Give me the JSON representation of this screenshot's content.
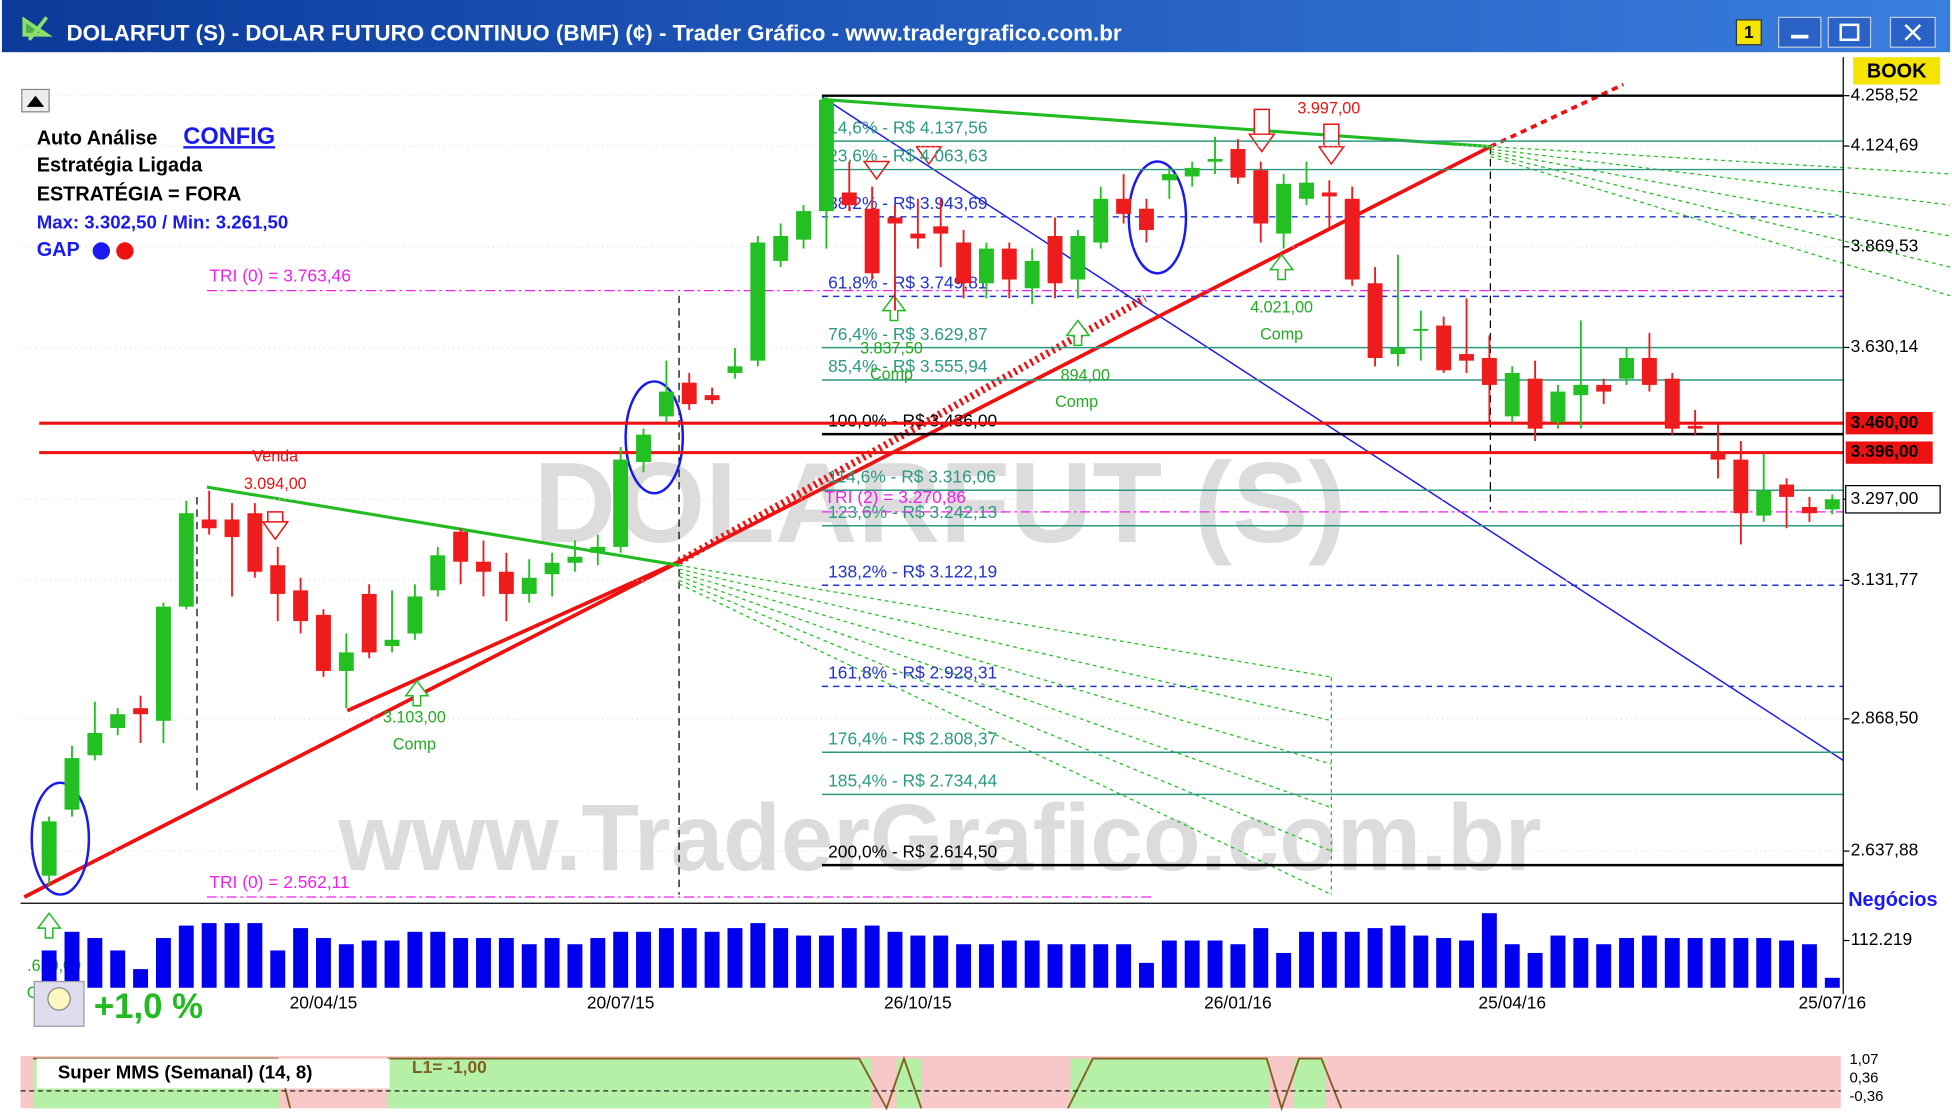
{
  "window": {
    "title": "DOLARFUT (S) - DOLAR FUTURO CONTINUO (BMF) (¢) - Trader Gráfico - www.tradergrafico.com.br",
    "badge": "1",
    "book": "BOOK"
  },
  "info": {
    "auto": "Auto Análise",
    "config": "CONFIG",
    "strategy": "Estratégia Ligada",
    "status": "ESTRATÉGIA = FORA",
    "maxmin": "Max: 3.302,50 / Min: 3.261,50",
    "gap": "GAP",
    "change": "+1,0 %"
  },
  "watermark": [
    "DOLARFUT (S)",
    "www.TraderGrafico.com.br"
  ],
  "signals": [
    "Venda",
    "3.094,00",
    "3.103,00",
    "Comp",
    "4.021,00",
    "Comp",
    "3.997,00",
    "Comp",
    "894,00",
    "3.837,50",
    "Comp",
    ".650,00",
    "C"
  ],
  "chart_data": [
    {
      "type": "candlestick",
      "log": true,
      "grid": true,
      "up_color": "#22c022",
      "down_color": "#ee1c1c",
      "categories": [
        null,
        null,
        null,
        null,
        null,
        null,
        null,
        null,
        null,
        null,
        null,
        null,
        "20/04/15",
        null,
        null,
        null,
        null,
        null,
        null,
        null,
        null,
        null,
        null,
        null,
        null,
        "20/07/15",
        null,
        null,
        null,
        null,
        null,
        null,
        null,
        null,
        null,
        null,
        null,
        null,
        "26/10/15",
        null,
        null,
        null,
        null,
        null,
        null,
        null,
        null,
        null,
        null,
        null,
        null,
        null,
        "26/01/16",
        null,
        null,
        null,
        null,
        null,
        null,
        null,
        null,
        null,
        null,
        null,
        "25/04/16",
        null,
        null,
        null,
        null,
        null,
        null,
        null,
        null,
        null,
        null,
        null,
        null,
        null,
        "25/07/16"
      ],
      "open": [
        2597,
        2708,
        2803,
        2852,
        2888,
        2865,
        3080,
        3255,
        3255,
        3268,
        3162,
        3112,
        3064,
        2957,
        3105,
        3004,
        3028,
        3112,
        3230,
        3169,
        3149,
        3105,
        3144,
        3167,
        3187,
        3199,
        3376,
        3475,
        3550,
        3522,
        3572,
        3600,
        3835,
        3887,
        3958,
        4005,
        3964,
        3942,
        3902,
        3920,
        3880,
        3781,
        3865,
        3769,
        3896,
        3790,
        3880,
        3989,
        3964,
        4036,
        4046,
        4084,
        4117,
        4062,
        3902,
        3989,
        4005,
        3989,
        3781,
        3615,
        3673,
        3681,
        3615,
        3606,
        3475,
        3559,
        3462,
        3522,
        3545,
        3559,
        3606,
        3559,
        3454,
        3394,
        3381,
        3263,
        3328,
        3281,
        3276
      ],
      "high": [
        2696,
        2820,
        2900,
        2888,
        2911,
        3088,
        3294,
        3315,
        3289,
        3289,
        3199,
        3137,
        3075,
        3028,
        3124,
        3112,
        3124,
        3199,
        3237,
        3212,
        3187,
        3174,
        3187,
        3212,
        3224,
        3408,
        3448,
        3600,
        3572,
        3539,
        3629,
        3896,
        3927,
        3973,
        4255,
        4084,
        4020,
        3973,
        3989,
        3989,
        3911,
        3880,
        3880,
        3865,
        3942,
        3911,
        4020,
        4052,
        3989,
        4068,
        4084,
        4149,
        4143,
        4084,
        4052,
        4084,
        4036,
        4020,
        3820,
        3850,
        3716,
        3702,
        3745,
        3658,
        3587,
        3600,
        3545,
        3693,
        3559,
        3629,
        3664,
        3572,
        3489,
        3462,
        3421,
        3394,
        3341,
        3302,
        3307
      ],
      "low": [
        2582,
        2696,
        2794,
        2839,
        2825,
        2825,
        3075,
        3224,
        3100,
        3137,
        3052,
        3028,
        2946,
        2888,
        2981,
        2992,
        3016,
        3100,
        3124,
        3100,
        3052,
        3088,
        3100,
        3149,
        3162,
        3187,
        3354,
        3462,
        3489,
        3502,
        3559,
        3587,
        3820,
        3865,
        3865,
        3958,
        3790,
        3716,
        3865,
        3820,
        3745,
        3745,
        3745,
        3731,
        3745,
        3745,
        3865,
        3927,
        3880,
        3989,
        4020,
        4052,
        4027,
        3880,
        3865,
        3973,
        3911,
        3775,
        3587,
        3587,
        3600,
        3572,
        3572,
        3462,
        3462,
        3421,
        3448,
        3448,
        3502,
        3545,
        3530,
        3435,
        3435,
        3341,
        3204,
        3250,
        3237,
        3250,
        3266
      ],
      "close": [
        2688,
        2798,
        2843,
        2877,
        2877,
        3080,
        3268,
        3237,
        3219,
        3149,
        3105,
        3052,
        2957,
        2992,
        2992,
        3016,
        3100,
        3182,
        3169,
        3149,
        3105,
        3137,
        3167,
        3179,
        3199,
        3381,
        3435,
        3530,
        3502,
        3511,
        3587,
        3880,
        3896,
        3958,
        4248,
        3973,
        3805,
        3927,
        3890,
        3902,
        3781,
        3865,
        3790,
        3835,
        3781,
        3896,
        3989,
        3951,
        3911,
        4052,
        4068,
        4091,
        4043,
        3927,
        4027,
        4030,
        3995,
        3790,
        3606,
        3629,
        3673,
        3578,
        3600,
        3545,
        3572,
        3448,
        3530,
        3545,
        3530,
        3606,
        3545,
        3448,
        3448,
        3381,
        3268,
        3315,
        3302,
        3268,
        3297
      ],
      "ylim": [
        2556,
        4272
      ],
      "yticks": [
        {
          "value": 4258.52,
          "label": "4.258,52"
        },
        {
          "value": 4124.69,
          "label": "4.124,69"
        },
        {
          "value": 3869.53,
          "label": "3.869,53"
        },
        {
          "value": 3630.14,
          "label": "3.630,14"
        },
        {
          "value": 3297,
          "label": "3.297,00"
        },
        {
          "value": 3131.77,
          "label": "3.131,77"
        },
        {
          "value": 2868.5,
          "label": "2.868,50"
        },
        {
          "value": 2637.88,
          "label": "2.637,88"
        }
      ],
      "levels": [
        {
          "label": "14,6% - R$ 4.137,56",
          "value": 4137.56,
          "color": "#2c9a80",
          "dash": false
        },
        {
          "label": "23,6% - R$ 4.063,63",
          "value": 4063.63,
          "color": "#2c9a80",
          "dash": false
        },
        {
          "label": "38,2% - R$ 3.943,69",
          "value": 3943.69,
          "color": "#2233cc",
          "dash": true
        },
        {
          "label": "61,8% - R$ 3.749,81",
          "value": 3749.81,
          "color": "#2233cc",
          "dash": true
        },
        {
          "label": "76,4% - R$ 3.629,87",
          "value": 3629.87,
          "color": "#2c9a80",
          "dash": false
        },
        {
          "label": "85,4% - R$ 3.555,94",
          "value": 3555.94,
          "color": "#2c9a80",
          "dash": false
        },
        {
          "label": "100,0% - R$ 3.436,00",
          "value": 3436,
          "color": "#000000",
          "dash": false
        },
        {
          "label": "114,6% - R$ 3.316,06",
          "value": 3316.06,
          "color": "#2c9a80",
          "dash": false
        },
        {
          "label": "123,6% - R$ 3.242,13",
          "value": 3242.13,
          "color": "#2c9a80",
          "dash": false
        },
        {
          "label": "138,2% - R$ 3.122,19",
          "value": 3122.19,
          "color": "#2233cc",
          "dash": true
        },
        {
          "label": "161,8% - R$ 2.928,31",
          "value": 2928.31,
          "color": "#2233cc",
          "dash": true
        },
        {
          "label": "176,4% - R$ 2.808,37",
          "value": 2808.37,
          "color": "#2c9a80",
          "dash": false
        },
        {
          "label": "185,4% - R$ 2.734,44",
          "value": 2734.44,
          "color": "#2c9a80",
          "dash": false
        },
        {
          "label": "200,0% - R$ 2.614,50",
          "value": 2614.5,
          "color": "#000000",
          "dash": false
        }
      ],
      "price_lines": [
        {
          "label": "3.460,00",
          "value": 3460,
          "color": "#ee1111"
        },
        {
          "label": "3.396,00",
          "value": 3396,
          "color": "#ee1111"
        }
      ],
      "tri_lines": [
        {
          "label": "TRI (0) = 3.763,46",
          "value": 3763.46,
          "color": "#ee22ee"
        },
        {
          "label": "TRI (2) = 3.270,86",
          "value": 3270.86,
          "color": "#ee22ee"
        },
        {
          "label": "TRI (0) = 2.562,11",
          "value": 2562.11,
          "color": "#ee22ee"
        }
      ]
    },
    {
      "type": "bar",
      "title": "Negócios",
      "color": "#0000ee",
      "values": [
        88600,
        132900,
        118100,
        88600,
        44300,
        118100,
        147700,
        153600,
        153600,
        153600,
        88600,
        141700,
        118100,
        103400,
        112200,
        112200,
        132900,
        132900,
        118100,
        118100,
        118100,
        103400,
        118100,
        103400,
        118100,
        132900,
        132900,
        141700,
        141700,
        132900,
        141700,
        153600,
        141700,
        124000,
        124000,
        141700,
        147700,
        132900,
        124000,
        124000,
        103400,
        103400,
        112200,
        112200,
        103400,
        103400,
        103400,
        103400,
        59100,
        112200,
        112200,
        112200,
        103400,
        141700,
        82700,
        132900,
        132900,
        132900,
        141700,
        147700,
        124000,
        118100,
        112200,
        177200,
        103400,
        82700,
        124000,
        118100,
        103400,
        118100,
        124000,
        118100,
        118100,
        118100,
        118100,
        118100,
        112200,
        103400,
        23600
      ],
      "ylim": [
        0,
        183000
      ],
      "yticks": [
        {
          "value": 112219,
          "label": "112.219"
        }
      ]
    }
  ],
  "indicator": {
    "title": "Super MMS (Semanal) (14, 8)",
    "line": "L1= -1,00",
    "ticks": [
      "1,07",
      "0,36",
      "-0,36"
    ]
  }
}
